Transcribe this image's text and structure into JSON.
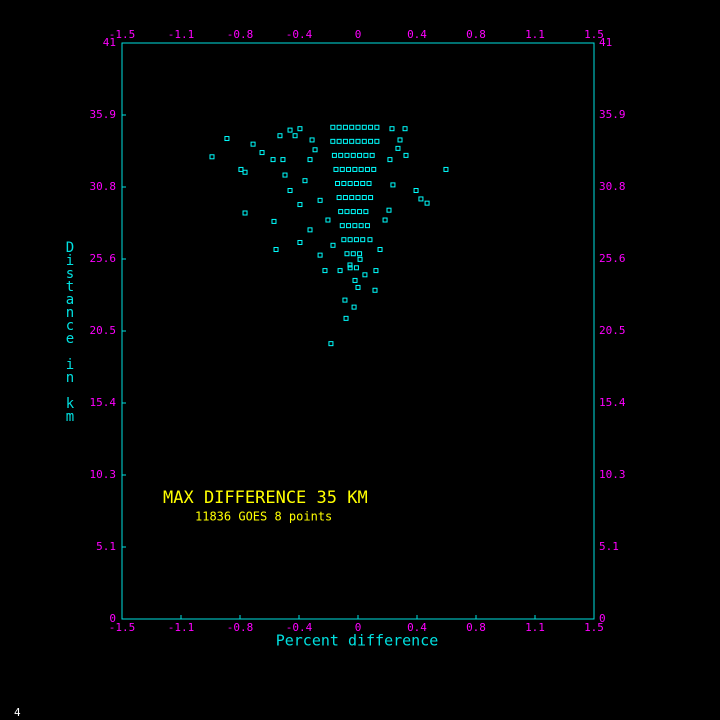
{
  "chart_data": {
    "type": "scatter",
    "annotations": [
      "MAX DIFFERENCE 35 KM",
      "11836 GOES 8 points"
    ],
    "x_label": "Percent difference",
    "y_label": "Distance in km",
    "color": "#00ffff",
    "grid": false,
    "xlim": [
      -1.5,
      1.5
    ],
    "xticks": [
      -1.5,
      {
        "value": -1.125,
        "label": "-1.1"
      },
      {
        "value": -0.75,
        "label": "-0.8"
      },
      {
        "value": -0.375,
        "label": "-0.4"
      },
      0,
      {
        "value": 0.375,
        "label": "0.4"
      },
      {
        "value": 0.75,
        "label": "0.8"
      },
      {
        "value": 1.125,
        "label": "1.1"
      },
      1.5
    ],
    "ylim": [
      0,
      41
    ],
    "yticks": [
      0,
      {
        "value": 5.125,
        "label": "5.1"
      },
      {
        "value": 10.25,
        "label": "10.3"
      },
      {
        "value": 15.375,
        "label": "15.4"
      },
      20.5,
      {
        "value": 25.625,
        "label": "25.6"
      },
      {
        "value": 30.75,
        "label": "30.8"
      },
      {
        "value": 35.875,
        "label": "35.9"
      },
      41
    ],
    "x": [
      -0.833,
      -0.928,
      -0.744,
      -0.718,
      -0.718,
      -0.534,
      -0.521,
      -0.667,
      -0.61,
      -0.369,
      -0.172,
      -0.076,
      -0.025,
      0.559,
      0.439,
      0.4,
      0.369,
      0.305,
      0.299,
      0.216,
      0.254,
      0.222,
      0.197,
      0.14,
      0.114,
      0.0,
      -0.019,
      -0.114,
      -0.21,
      -0.241,
      -0.305,
      -0.369,
      -0.432,
      -0.464,
      -0.4,
      -0.369,
      -0.432,
      -0.496,
      -0.54,
      -0.477,
      -0.305,
      -0.273,
      -0.337,
      -0.241,
      -0.191,
      -0.159,
      0.076,
      0.172,
      0.203,
      0.267,
      0.108,
      0.013,
      -0.051,
      -0.083,
      0.044,
      -0.292,
      -0.16,
      -0.12,
      -0.08,
      -0.04,
      0,
      0.04,
      0.08,
      0.12,
      -0.16,
      -0.12,
      -0.08,
      -0.04,
      0,
      0.04,
      0.08,
      0.12,
      -0.15,
      -0.11,
      -0.07,
      -0.03,
      0.01,
      0.05,
      0.09,
      -0.14,
      -0.1,
      -0.06,
      -0.02,
      0.02,
      0.06,
      0.1,
      -0.13,
      -0.09,
      -0.05,
      -0.01,
      0.03,
      0.07,
      -0.12,
      -0.08,
      -0.04,
      0,
      0.04,
      0.08,
      -0.11,
      -0.07,
      -0.03,
      0.01,
      0.05,
      -0.1,
      -0.06,
      -0.02,
      0.02,
      0.06,
      -0.09,
      -0.05,
      -0.01,
      0.03,
      -0.07,
      -0.03,
      0.01,
      -0.05,
      -0.01
    ],
    "values": [
      34.2,
      32.9,
      32.0,
      31.8,
      28.9,
      28.3,
      26.3,
      33.8,
      33.2,
      26.8,
      19.6,
      21.4,
      22.2,
      32.0,
      29.6,
      29.9,
      30.5,
      33.0,
      34.9,
      34.9,
      33.5,
      30.9,
      29.1,
      26.3,
      24.8,
      23.6,
      24.1,
      24.8,
      24.8,
      25.9,
      27.7,
      29.5,
      30.5,
      31.6,
      34.4,
      34.9,
      34.8,
      34.4,
      32.7,
      32.7,
      32.7,
      33.4,
      31.2,
      29.8,
      28.4,
      26.6,
      27.0,
      28.4,
      32.7,
      34.1,
      23.4,
      25.6,
      25.2,
      22.7,
      24.5,
      34.1,
      35,
      35,
      35,
      35,
      35,
      35,
      35,
      35,
      34,
      34,
      34,
      34,
      34,
      34,
      34,
      34,
      33,
      33,
      33,
      33,
      33,
      33,
      33,
      32,
      32,
      32,
      32,
      32,
      32,
      32,
      31,
      31,
      31,
      31,
      31,
      31,
      30,
      30,
      30,
      30,
      30,
      30,
      29,
      29,
      29,
      29,
      29,
      28,
      28,
      28,
      28,
      28,
      27,
      27,
      27,
      27,
      26,
      26,
      26,
      25,
      25
    ]
  },
  "page_number": "4"
}
